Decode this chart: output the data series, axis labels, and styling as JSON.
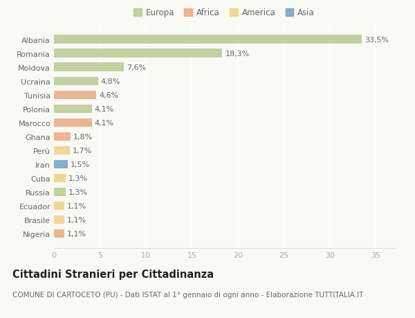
{
  "countries": [
    "Albania",
    "Romania",
    "Moldova",
    "Ucraina",
    "Tunisia",
    "Polonia",
    "Marocco",
    "Ghana",
    "Perù",
    "Iran",
    "Cuba",
    "Russia",
    "Ecuador",
    "Brasile",
    "Nigeria"
  ],
  "values": [
    33.5,
    18.3,
    7.6,
    4.8,
    4.6,
    4.1,
    4.1,
    1.8,
    1.7,
    1.5,
    1.3,
    1.3,
    1.1,
    1.1,
    1.1
  ],
  "labels": [
    "33,5%",
    "18,3%",
    "7,6%",
    "4,8%",
    "4,6%",
    "4,1%",
    "4,1%",
    "1,8%",
    "1,7%",
    "1,5%",
    "1,3%",
    "1,3%",
    "1,1%",
    "1,1%",
    "1,1%"
  ],
  "continents": [
    "Europa",
    "Europa",
    "Europa",
    "Europa",
    "Africa",
    "Europa",
    "Africa",
    "Africa",
    "America",
    "Asia",
    "America",
    "Europa",
    "America",
    "America",
    "Africa"
  ],
  "continent_colors": {
    "Europa": "#b5c98e",
    "Africa": "#e8a87c",
    "America": "#f0d080",
    "Asia": "#6b9ec8"
  },
  "legend_entries": [
    "Europa",
    "Africa",
    "America",
    "Asia"
  ],
  "legend_colors": [
    "#b5c98e",
    "#e8a87c",
    "#f0d080",
    "#6b9ec8"
  ],
  "title": "Cittadini Stranieri per Cittadinanza",
  "subtitle": "COMUNE DI CARTOCETO (PU) - Dati ISTAT al 1° gennaio di ogni anno - Elaborazione TUTTITALIA.IT",
  "xlim": [
    0,
    37
  ],
  "xticks": [
    0,
    5,
    10,
    15,
    20,
    25,
    30,
    35
  ],
  "background_color": "#f9f9f5",
  "bar_alpha": 0.82,
  "grid_color": "#ffffff",
  "label_fontsize": 8.0,
  "tick_fontsize": 8.0,
  "title_fontsize": 10.5,
  "subtitle_fontsize": 7.5,
  "legend_fontsize": 8.5,
  "legend_marker_size": 10
}
